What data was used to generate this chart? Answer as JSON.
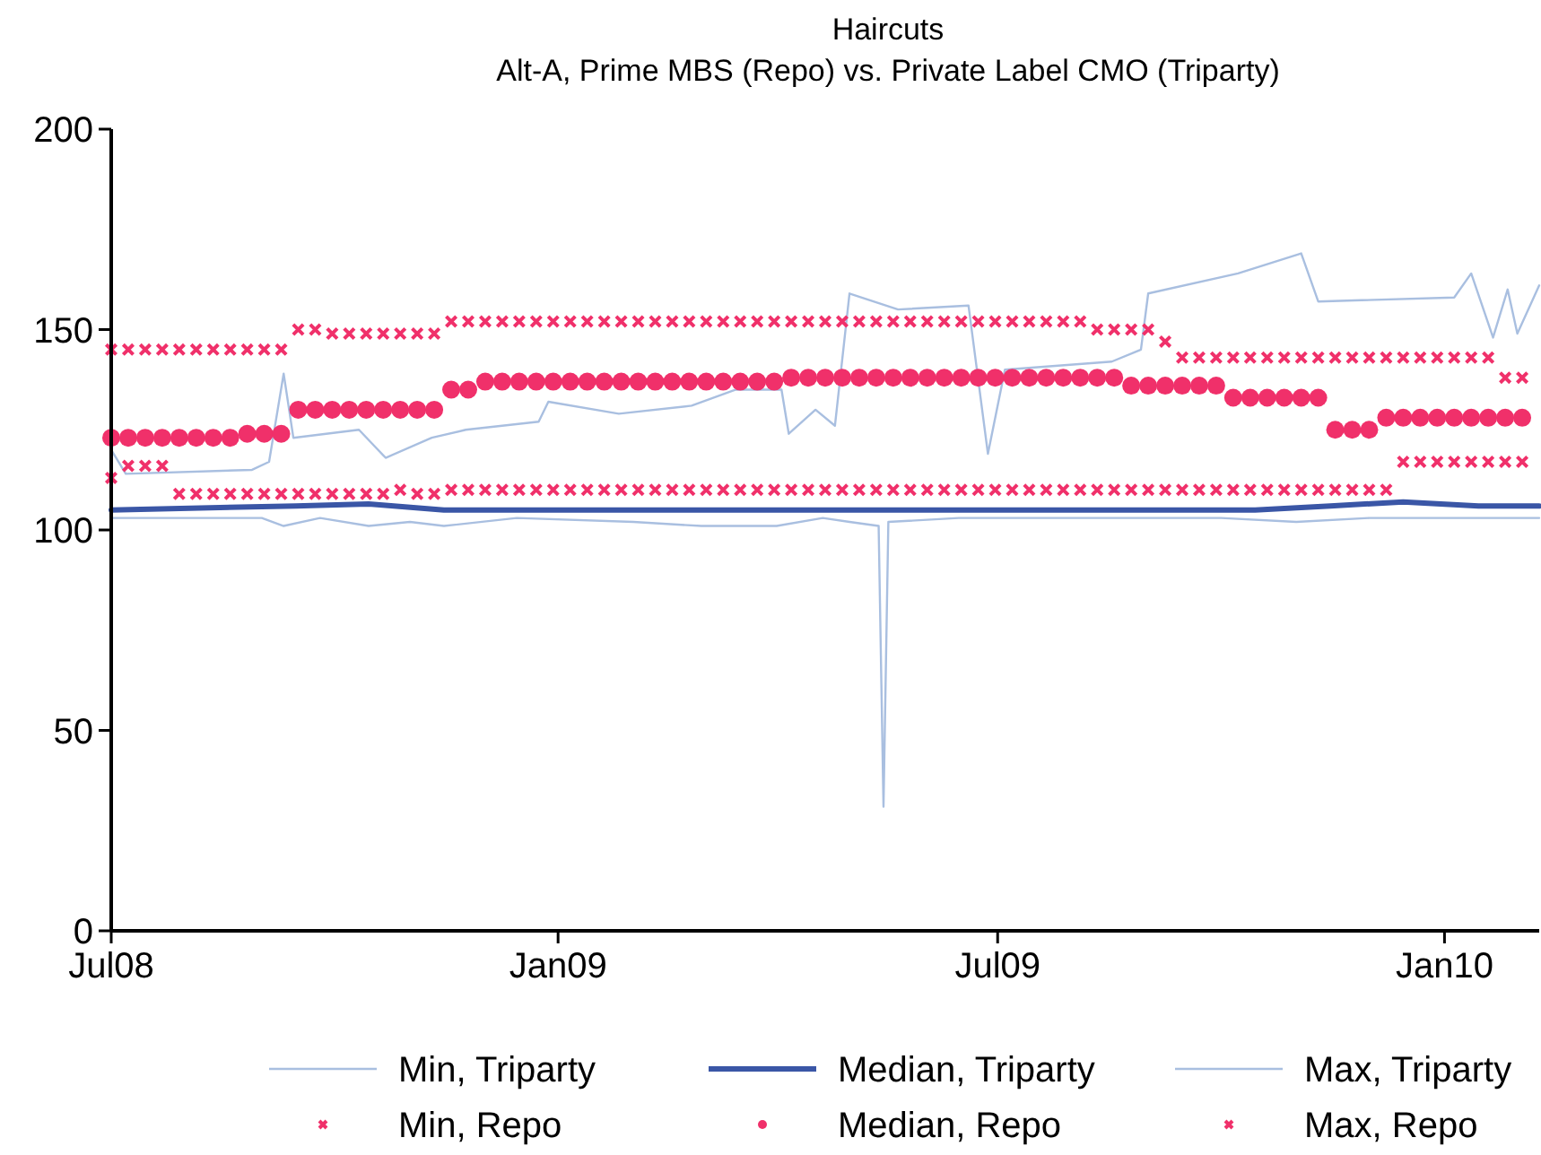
{
  "chart_data": {
    "type": "line",
    "title": "Haircuts",
    "subtitle": "Alt-A, Prime MBS (Repo) vs. Private Label CMO (Triparty)",
    "xlim": [
      "2008-07-01",
      "2010-02-09"
    ],
    "ylim": [
      0,
      200
    ],
    "xticks": [
      {
        "value": "2008-07-01",
        "label": "Jul08"
      },
      {
        "value": "2009-01-01",
        "label": "Jan09"
      },
      {
        "value": "2009-07-01",
        "label": "Jul09"
      },
      {
        "value": "2010-01-01",
        "label": "Jan10"
      }
    ],
    "yticks": [
      0,
      50,
      100,
      150,
      200
    ],
    "grid": false,
    "legend": "bottom",
    "x": [
      "2008-07-01",
      "2008-07-08",
      "2008-07-15",
      "2008-07-22",
      "2008-07-29",
      "2008-08-05",
      "2008-08-12",
      "2008-08-19",
      "2008-08-26",
      "2008-09-02",
      "2008-09-09",
      "2008-09-16",
      "2008-09-23",
      "2008-09-30",
      "2008-10-07",
      "2008-10-14",
      "2008-10-21",
      "2008-10-28",
      "2008-11-04",
      "2008-11-11",
      "2008-11-18",
      "2008-11-25",
      "2008-12-02",
      "2008-12-09",
      "2008-12-16",
      "2008-12-23",
      "2008-12-30",
      "2009-01-06",
      "2009-01-13",
      "2009-01-20",
      "2009-01-27",
      "2009-02-03",
      "2009-02-10",
      "2009-02-17",
      "2009-02-24",
      "2009-03-03",
      "2009-03-10",
      "2009-03-17",
      "2009-03-24",
      "2009-03-31",
      "2009-04-07",
      "2009-04-14",
      "2009-04-21",
      "2009-04-28",
      "2009-05-05",
      "2009-05-12",
      "2009-05-19",
      "2009-05-26",
      "2009-06-02",
      "2009-06-09",
      "2009-06-16",
      "2009-06-23",
      "2009-06-30",
      "2009-07-07",
      "2009-07-14",
      "2009-07-21",
      "2009-07-28",
      "2009-08-04",
      "2009-08-11",
      "2009-08-18",
      "2009-08-25",
      "2009-09-01",
      "2009-09-08",
      "2009-09-15",
      "2009-09-22",
      "2009-09-29",
      "2009-10-06",
      "2009-10-13",
      "2009-10-20",
      "2009-10-27",
      "2009-11-03",
      "2009-11-10",
      "2009-11-17",
      "2009-11-24",
      "2009-12-01",
      "2009-12-08",
      "2009-12-15",
      "2009-12-22",
      "2009-12-29",
      "2010-01-05",
      "2010-01-12",
      "2010-01-19",
      "2010-01-26",
      "2010-02-02"
    ],
    "series": [
      {
        "name": "Min, Triparty",
        "color": "#a9bfe0",
        "line_style": "solid",
        "marker": "none",
        "x": [
          "2008-07-01",
          "2008-09-01",
          "2008-09-10",
          "2008-09-25",
          "2008-10-15",
          "2008-11-01",
          "2008-11-15",
          "2008-12-15",
          "2009-02-01",
          "2009-03-01",
          "2009-04-01",
          "2009-04-20",
          "2009-05-01",
          "2009-05-13",
          "2009-05-15",
          "2009-05-17",
          "2009-06-15",
          "2009-08-01",
          "2009-10-01",
          "2009-11-01",
          "2009-12-01",
          "2010-02-09"
        ],
        "values": [
          103,
          103,
          101,
          103,
          101,
          102,
          101,
          103,
          102,
          101,
          101,
          103,
          102,
          101,
          31,
          102,
          103,
          103,
          103,
          102,
          103,
          103
        ]
      },
      {
        "name": "Median, Triparty",
        "color": "#3a56a6",
        "line_style": "solid",
        "marker": "none",
        "x": [
          "2008-07-01",
          "2008-09-15",
          "2008-10-15",
          "2008-11-15",
          "2009-06-01",
          "2009-10-15",
          "2009-11-15",
          "2009-12-15",
          "2010-01-15",
          "2010-02-09"
        ],
        "values": [
          105,
          106,
          106.5,
          105,
          105,
          105,
          106,
          107,
          106,
          106
        ]
      },
      {
        "name": "Max, Triparty",
        "color": "#a9bfe0",
        "line_style": "solid",
        "marker": "none",
        "x": [
          "2008-07-01",
          "2008-07-07",
          "2008-08-28",
          "2008-09-04",
          "2008-09-10",
          "2008-09-14",
          "2008-10-11",
          "2008-10-22",
          "2008-11-10",
          "2008-11-24",
          "2008-12-24",
          "2008-12-28",
          "2009-01-26",
          "2009-02-25",
          "2009-03-15",
          "2009-04-03",
          "2009-04-06",
          "2009-04-17",
          "2009-04-25",
          "2009-05-01",
          "2009-05-21",
          "2009-06-19",
          "2009-06-27",
          "2009-07-04",
          "2009-08-17",
          "2009-08-29",
          "2009-09-01",
          "2009-10-08",
          "2009-11-03",
          "2009-11-10",
          "2010-01-05",
          "2010-01-12",
          "2010-01-21",
          "2010-01-27",
          "2010-01-31",
          "2010-02-09"
        ],
        "values": [
          120,
          114,
          115,
          117,
          139,
          123,
          125,
          118,
          123,
          125,
          127,
          132,
          129,
          131,
          135,
          135,
          124,
          130,
          126,
          159,
          155,
          156,
          119,
          140,
          142,
          145,
          159,
          164,
          169,
          157,
          158,
          164,
          148,
          160,
          149,
          161
        ]
      },
      {
        "name": "Min, Repo",
        "type": "scatter",
        "color": "#f0306a",
        "marker": "cross",
        "values": [
          113,
          116,
          116,
          116,
          109,
          109,
          109,
          109,
          109,
          109,
          109,
          109,
          109,
          109,
          109,
          109,
          109,
          110,
          109,
          109,
          110,
          110,
          110,
          110,
          110,
          110,
          110,
          110,
          110,
          110,
          110,
          110,
          110,
          110,
          110,
          110,
          110,
          110,
          110,
          110,
          110,
          110,
          110,
          110,
          110,
          110,
          110,
          110,
          110,
          110,
          110,
          110,
          110,
          110,
          110,
          110,
          110,
          110,
          110,
          110,
          110,
          110,
          110,
          110,
          110,
          110,
          110,
          110,
          110,
          110,
          110,
          110,
          110,
          110,
          110,
          110,
          117,
          117,
          117,
          117,
          117,
          117,
          117,
          117
        ]
      },
      {
        "name": "Median, Repo",
        "type": "scatter",
        "color": "#f0306a",
        "marker": "circle",
        "values": [
          123,
          123,
          123,
          123,
          123,
          123,
          123,
          123,
          124,
          124,
          124,
          130,
          130,
          130,
          130,
          130,
          130,
          130,
          130,
          130,
          135,
          135,
          137,
          137,
          137,
          137,
          137,
          137,
          137,
          137,
          137,
          137,
          137,
          137,
          137,
          137,
          137,
          137,
          137,
          137,
          138,
          138,
          138,
          138,
          138,
          138,
          138,
          138,
          138,
          138,
          138,
          138,
          138,
          138,
          138,
          138,
          138,
          138,
          138,
          138,
          136,
          136,
          136,
          136,
          136,
          136,
          133,
          133,
          133,
          133,
          133,
          133,
          125,
          125,
          125,
          128,
          128,
          128,
          128,
          128,
          128,
          128,
          128,
          128
        ]
      },
      {
        "name": "Max, Repo",
        "type": "scatter",
        "color": "#f0306a",
        "marker": "cross",
        "values": [
          145,
          145,
          145,
          145,
          145,
          145,
          145,
          145,
          145,
          145,
          145,
          150,
          150,
          149,
          149,
          149,
          149,
          149,
          149,
          149,
          152,
          152,
          152,
          152,
          152,
          152,
          152,
          152,
          152,
          152,
          152,
          152,
          152,
          152,
          152,
          152,
          152,
          152,
          152,
          152,
          152,
          152,
          152,
          152,
          152,
          152,
          152,
          152,
          152,
          152,
          152,
          152,
          152,
          152,
          152,
          152,
          152,
          152,
          150,
          150,
          150,
          150,
          147,
          143,
          143,
          143,
          143,
          143,
          143,
          143,
          143,
          143,
          143,
          143,
          143,
          143,
          143,
          143,
          143,
          143,
          143,
          143,
          138,
          138
        ]
      }
    ]
  }
}
